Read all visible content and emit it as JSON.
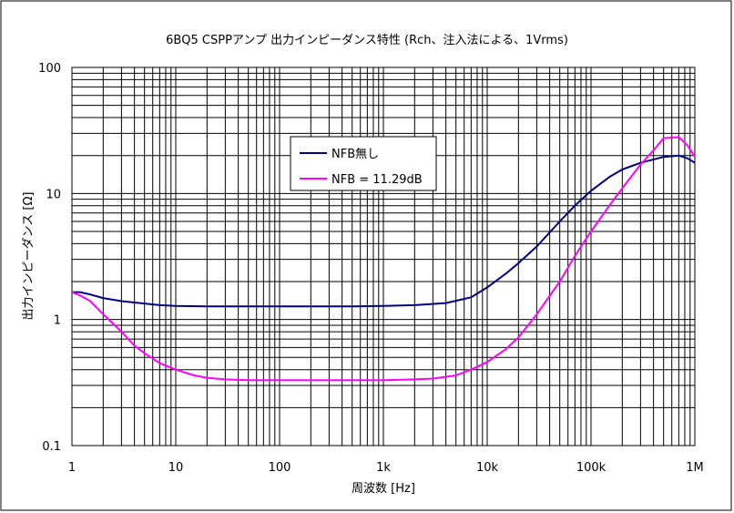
{
  "chart_data": {
    "type": "line",
    "title": "6BQ5 CSPPアンプ 出力インピーダンス特性 (Rch、注入法による、1Vrms)",
    "xlabel": "周波数 [Hz]",
    "ylabel": "出力インピーダンス [Ω]",
    "x_scale": "log",
    "y_scale": "log",
    "xlim": [
      1,
      1000000
    ],
    "ylim": [
      0.1,
      100
    ],
    "grid": true,
    "legend_position": "upper-center",
    "x_ticks": [
      {
        "value": 1,
        "label": "1"
      },
      {
        "value": 10,
        "label": "10"
      },
      {
        "value": 100,
        "label": "100"
      },
      {
        "value": 1000,
        "label": "1k"
      },
      {
        "value": 10000,
        "label": "10k"
      },
      {
        "value": 100000,
        "label": "100k"
      },
      {
        "value": 1000000,
        "label": "1M"
      }
    ],
    "y_ticks": [
      {
        "value": 0.1,
        "label": "0.1"
      },
      {
        "value": 1,
        "label": "1"
      },
      {
        "value": 10,
        "label": "10"
      },
      {
        "value": 100,
        "label": "100"
      }
    ],
    "series": [
      {
        "name": "NFB無し",
        "color": "#000080",
        "points": [
          [
            1,
            1.65
          ],
          [
            1.2,
            1.65
          ],
          [
            1.5,
            1.58
          ],
          [
            2,
            1.48
          ],
          [
            3,
            1.4
          ],
          [
            5,
            1.34
          ],
          [
            7,
            1.3
          ],
          [
            10,
            1.28
          ],
          [
            20,
            1.27
          ],
          [
            50,
            1.27
          ],
          [
            100,
            1.27
          ],
          [
            200,
            1.27
          ],
          [
            500,
            1.27
          ],
          [
            1000,
            1.28
          ],
          [
            2000,
            1.3
          ],
          [
            4000,
            1.35
          ],
          [
            7000,
            1.5
          ],
          [
            10000,
            1.8
          ],
          [
            15000,
            2.3
          ],
          [
            20000,
            2.8
          ],
          [
            30000,
            3.8
          ],
          [
            50000,
            6.0
          ],
          [
            70000,
            8.0
          ],
          [
            100000,
            10.5
          ],
          [
            150000,
            13.5
          ],
          [
            200000,
            15.5
          ],
          [
            300000,
            17.5
          ],
          [
            500000,
            19.5
          ],
          [
            700000,
            20.0
          ],
          [
            850000,
            19.0
          ],
          [
            1000000,
            17.5
          ]
        ]
      },
      {
        "name": "NFB = 11.29dB",
        "color": "#ff00ff",
        "points": [
          [
            1,
            1.65
          ],
          [
            1.2,
            1.55
          ],
          [
            1.5,
            1.4
          ],
          [
            2,
            1.1
          ],
          [
            3,
            0.8
          ],
          [
            4,
            0.62
          ],
          [
            5,
            0.54
          ],
          [
            7,
            0.45
          ],
          [
            10,
            0.4
          ],
          [
            15,
            0.36
          ],
          [
            20,
            0.345
          ],
          [
            30,
            0.335
          ],
          [
            50,
            0.33
          ],
          [
            100,
            0.33
          ],
          [
            300,
            0.33
          ],
          [
            1000,
            0.33
          ],
          [
            2000,
            0.335
          ],
          [
            3000,
            0.34
          ],
          [
            5000,
            0.36
          ],
          [
            7000,
            0.4
          ],
          [
            10000,
            0.46
          ],
          [
            15000,
            0.58
          ],
          [
            20000,
            0.72
          ],
          [
            30000,
            1.1
          ],
          [
            50000,
            2.0
          ],
          [
            70000,
            3.2
          ],
          [
            100000,
            5.0
          ],
          [
            150000,
            8.0
          ],
          [
            200000,
            11.0
          ],
          [
            300000,
            17.0
          ],
          [
            400000,
            22.0
          ],
          [
            500000,
            27.5
          ],
          [
            700000,
            28.0
          ],
          [
            850000,
            24.0
          ],
          [
            1000000,
            19.5
          ]
        ]
      }
    ]
  }
}
